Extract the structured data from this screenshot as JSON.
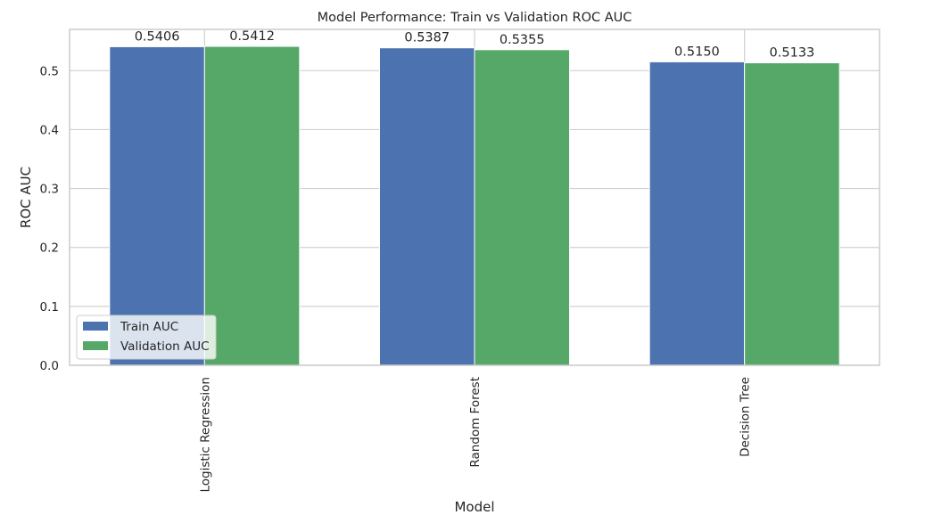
{
  "chart_data": {
    "type": "bar",
    "title": "Model Performance: Train vs Validation ROC AUC",
    "xlabel": "Model",
    "ylabel": "ROC AUC",
    "categories": [
      "Logistic Regression",
      "Random Forest",
      "Decision Tree"
    ],
    "series": [
      {
        "name": "Train AUC",
        "values": [
          0.5406,
          0.5387,
          0.515
        ],
        "labels": [
          "0.5406",
          "0.5387",
          "0.5150"
        ],
        "color": "#4c72b0"
      },
      {
        "name": "Validation AUC",
        "values": [
          0.5412,
          0.5355,
          0.5133
        ],
        "labels": [
          "0.5412",
          "0.5355",
          "0.5133"
        ],
        "color": "#55a868"
      }
    ],
    "ylim": [
      0,
      0.57
    ],
    "yticks": [
      0.0,
      0.1,
      0.2,
      0.3,
      0.4,
      0.5
    ],
    "ytick_labels": [
      "0.0",
      "0.1",
      "0.2",
      "0.3",
      "0.4",
      "0.5"
    ],
    "grid": true,
    "legend_position": "lower-left",
    "x_tick_rotation": "vertical"
  }
}
